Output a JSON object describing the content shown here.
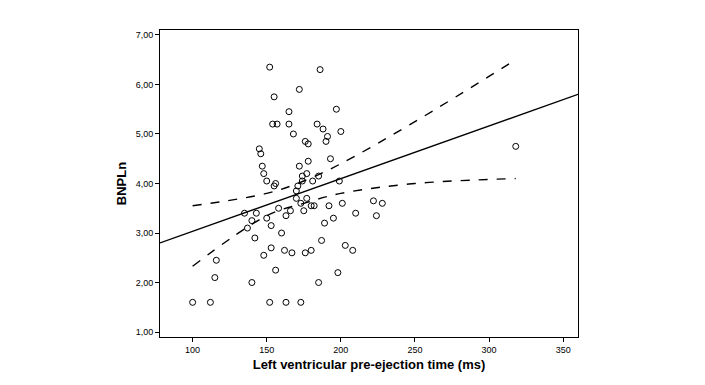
{
  "chart_data": {
    "type": "scatter",
    "x_label": "Left ventricular pre-ejection time (ms)",
    "y_label": "BNPLn",
    "xlim": [
      78,
      360
    ],
    "xticks": [
      100,
      150,
      200,
      250,
      300,
      350
    ],
    "ylim": [
      0.9,
      7.1
    ],
    "yticks": [
      {
        "value": 1,
        "label": "1,00"
      },
      {
        "value": 2,
        "label": "2,00"
      },
      {
        "value": 3,
        "label": "3,00"
      },
      {
        "value": 4,
        "label": "4,00"
      },
      {
        "value": 5,
        "label": "5,00"
      },
      {
        "value": 6,
        "label": "6,00"
      },
      {
        "value": 7,
        "label": "7,00"
      }
    ],
    "grid": false,
    "series": [
      {
        "type": "scatter",
        "marker": "open circle",
        "color": "#000000",
        "x": [
          100,
          112,
          115,
          116,
          135,
          137,
          140,
          140,
          142,
          143,
          145,
          146,
          147,
          148,
          148,
          150,
          150,
          152,
          152,
          153,
          153,
          154,
          155,
          155,
          156,
          156,
          157,
          158,
          160,
          162,
          163,
          163,
          165,
          165,
          166,
          167,
          168,
          170,
          170,
          171,
          172,
          172,
          173,
          173,
          174,
          174,
          175,
          176,
          176,
          177,
          177,
          178,
          178,
          180,
          180,
          181,
          182,
          184,
          185,
          185,
          186,
          187,
          188,
          189,
          190,
          191,
          192,
          193,
          195,
          197,
          198,
          199,
          200,
          201,
          203,
          208,
          210,
          222,
          224,
          228,
          318
        ],
        "values": [
          1.6,
          1.6,
          2.1,
          2.45,
          3.4,
          3.1,
          2.0,
          3.25,
          2.9,
          3.4,
          4.7,
          4.6,
          4.35,
          4.2,
          2.55,
          4.05,
          3.3,
          6.35,
          1.6,
          2.7,
          3.15,
          5.2,
          5.75,
          3.95,
          4.0,
          2.25,
          5.2,
          3.5,
          3.0,
          2.65,
          3.35,
          1.6,
          5.45,
          5.2,
          3.45,
          2.6,
          5.0,
          3.7,
          3.85,
          3.95,
          5.9,
          4.35,
          3.6,
          1.6,
          4.05,
          4.15,
          3.45,
          4.85,
          2.6,
          3.7,
          4.2,
          4.45,
          4.8,
          2.65,
          3.55,
          4.05,
          3.55,
          5.2,
          4.15,
          2.0,
          6.3,
          2.85,
          5.1,
          3.2,
          4.85,
          4.95,
          3.55,
          4.5,
          3.3,
          5.5,
          2.2,
          4.05,
          5.05,
          3.6,
          2.75,
          2.65,
          3.4,
          3.65,
          3.35,
          3.6,
          4.75
        ]
      },
      {
        "type": "line",
        "line_style": "solid",
        "color": "#000000",
        "x": [
          78,
          360
        ],
        "values": [
          2.8,
          5.8
        ]
      },
      {
        "type": "line",
        "line_style": "dashed",
        "color": "#000000",
        "x": [
          100,
          150,
          175,
          200,
          250,
          318
        ],
        "values": [
          3.55,
          3.8,
          4.05,
          4.4,
          5.25,
          6.5
        ]
      },
      {
        "type": "line",
        "line_style": "dashed",
        "color": "#000000",
        "x": [
          100,
          150,
          175,
          200,
          250,
          318
        ],
        "values": [
          2.33,
          3.35,
          3.6,
          3.8,
          4.0,
          4.1
        ]
      }
    ]
  }
}
